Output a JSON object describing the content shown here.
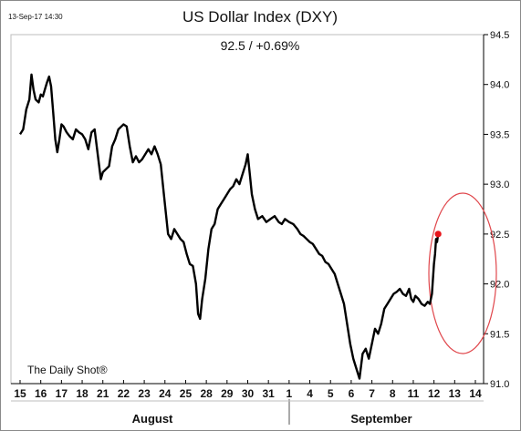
{
  "timestamp": "13-Sep-17 14:30",
  "source": "The Daily Shot®",
  "chart_data": {
    "type": "line",
    "title": "US Dollar Index (DXY)",
    "subtitle": "92.5  /  +0.69%",
    "xlabel": "",
    "ylabel": "",
    "ylim": [
      91.0,
      94.5
    ],
    "y_ticks": [
      "94.5",
      "94.0",
      "93.5",
      "93.0",
      "92.5",
      "92.0",
      "91.5",
      "91.0"
    ],
    "x_ticks": [
      "15",
      "16",
      "17",
      "18",
      "21",
      "22",
      "23",
      "24",
      "25",
      "28",
      "29",
      "30",
      "31",
      "1",
      "4",
      "5",
      "6",
      "7",
      "8",
      "11",
      "12",
      "13",
      "14"
    ],
    "month_labels": [
      "August",
      "September"
    ],
    "grid": false,
    "series": [
      {
        "values": [
          [
            0.0,
            93.5
          ],
          [
            0.15,
            93.55
          ],
          [
            0.3,
            93.75
          ],
          [
            0.45,
            93.85
          ],
          [
            0.55,
            94.1
          ],
          [
            0.65,
            93.95
          ],
          [
            0.75,
            93.85
          ],
          [
            0.9,
            93.82
          ],
          [
            1.0,
            93.9
          ],
          [
            1.1,
            93.88
          ],
          [
            1.2,
            93.95
          ],
          [
            1.3,
            94.02
          ],
          [
            1.4,
            94.08
          ],
          [
            1.5,
            93.98
          ],
          [
            1.6,
            93.72
          ],
          [
            1.7,
            93.45
          ],
          [
            1.8,
            93.32
          ],
          [
            1.9,
            93.45
          ],
          [
            2.0,
            93.6
          ],
          [
            2.1,
            93.58
          ],
          [
            2.25,
            93.52
          ],
          [
            2.4,
            93.48
          ],
          [
            2.55,
            93.45
          ],
          [
            2.7,
            93.55
          ],
          [
            2.85,
            93.52
          ],
          [
            3.0,
            93.5
          ],
          [
            3.15,
            93.45
          ],
          [
            3.3,
            93.35
          ],
          [
            3.45,
            93.52
          ],
          [
            3.6,
            93.55
          ],
          [
            3.75,
            93.3
          ],
          [
            3.9,
            93.05
          ],
          [
            4.0,
            93.12
          ],
          [
            4.15,
            93.15
          ],
          [
            4.3,
            93.18
          ],
          [
            4.45,
            93.38
          ],
          [
            4.6,
            93.45
          ],
          [
            4.75,
            93.55
          ],
          [
            4.9,
            93.58
          ],
          [
            5.0,
            93.6
          ],
          [
            5.15,
            93.58
          ],
          [
            5.3,
            93.38
          ],
          [
            5.45,
            93.22
          ],
          [
            5.6,
            93.28
          ],
          [
            5.75,
            93.22
          ],
          [
            5.9,
            93.25
          ],
          [
            6.05,
            93.3
          ],
          [
            6.2,
            93.35
          ],
          [
            6.35,
            93.3
          ],
          [
            6.5,
            93.38
          ],
          [
            6.65,
            93.3
          ],
          [
            6.8,
            93.2
          ],
          [
            6.95,
            92.9
          ],
          [
            7.05,
            92.7
          ],
          [
            7.15,
            92.5
          ],
          [
            7.3,
            92.45
          ],
          [
            7.45,
            92.55
          ],
          [
            7.6,
            92.5
          ],
          [
            7.75,
            92.45
          ],
          [
            7.9,
            92.42
          ],
          [
            8.05,
            92.3
          ],
          [
            8.2,
            92.2
          ],
          [
            8.35,
            92.18
          ],
          [
            8.5,
            92.0
          ],
          [
            8.6,
            91.7
          ],
          [
            8.7,
            91.65
          ],
          [
            8.8,
            91.85
          ],
          [
            8.95,
            92.05
          ],
          [
            9.1,
            92.35
          ],
          [
            9.25,
            92.55
          ],
          [
            9.4,
            92.6
          ],
          [
            9.55,
            92.75
          ],
          [
            9.7,
            92.8
          ],
          [
            9.85,
            92.85
          ],
          [
            10.0,
            92.9
          ],
          [
            10.15,
            92.95
          ],
          [
            10.3,
            92.98
          ],
          [
            10.45,
            93.05
          ],
          [
            10.6,
            93.0
          ],
          [
            10.75,
            93.1
          ],
          [
            10.9,
            93.2
          ],
          [
            11.0,
            93.3
          ],
          [
            11.1,
            93.1
          ],
          [
            11.2,
            92.9
          ],
          [
            11.35,
            92.75
          ],
          [
            11.5,
            92.65
          ],
          [
            11.7,
            92.68
          ],
          [
            11.9,
            92.62
          ],
          [
            12.1,
            92.65
          ],
          [
            12.3,
            92.68
          ],
          [
            12.5,
            92.62
          ],
          [
            12.65,
            92.6
          ],
          [
            12.8,
            92.65
          ],
          [
            13.0,
            92.62
          ],
          [
            13.2,
            92.6
          ],
          [
            13.4,
            92.55
          ],
          [
            13.55,
            92.5
          ],
          [
            13.7,
            92.48
          ],
          [
            13.85,
            92.45
          ],
          [
            14.0,
            92.42
          ],
          [
            14.15,
            92.4
          ],
          [
            14.3,
            92.35
          ],
          [
            14.45,
            92.3
          ],
          [
            14.6,
            92.28
          ],
          [
            14.75,
            92.22
          ],
          [
            14.9,
            92.2
          ],
          [
            15.05,
            92.15
          ],
          [
            15.2,
            92.1
          ],
          [
            15.35,
            92.0
          ],
          [
            15.5,
            91.9
          ],
          [
            15.65,
            91.8
          ],
          [
            15.8,
            91.6
          ],
          [
            15.95,
            91.4
          ],
          [
            16.1,
            91.25
          ],
          [
            16.25,
            91.15
          ],
          [
            16.4,
            91.05
          ],
          [
            16.55,
            91.3
          ],
          [
            16.7,
            91.35
          ],
          [
            16.85,
            91.25
          ],
          [
            17.0,
            91.4
          ],
          [
            17.15,
            91.55
          ],
          [
            17.3,
            91.5
          ],
          [
            17.45,
            91.6
          ],
          [
            17.6,
            91.75
          ],
          [
            17.75,
            91.8
          ],
          [
            17.9,
            91.85
          ],
          [
            18.05,
            91.9
          ],
          [
            18.2,
            91.92
          ],
          [
            18.35,
            91.95
          ],
          [
            18.5,
            91.9
          ],
          [
            18.65,
            91.88
          ],
          [
            18.8,
            91.95
          ],
          [
            18.9,
            91.85
          ],
          [
            19.0,
            91.82
          ],
          [
            19.1,
            91.88
          ],
          [
            19.25,
            91.85
          ],
          [
            19.4,
            91.8
          ],
          [
            19.55,
            91.78
          ],
          [
            19.7,
            91.82
          ],
          [
            19.8,
            91.8
          ],
          [
            19.9,
            91.9
          ],
          [
            19.95,
            92.05
          ],
          [
            20.0,
            92.2
          ],
          [
            20.05,
            92.3
          ],
          [
            20.1,
            92.45
          ],
          [
            20.15,
            92.42
          ],
          [
            20.2,
            92.5
          ]
        ]
      }
    ],
    "last_point_color": "#e8141a",
    "line_color": "#000000",
    "highlight_ellipse_color": "#e0474c"
  }
}
